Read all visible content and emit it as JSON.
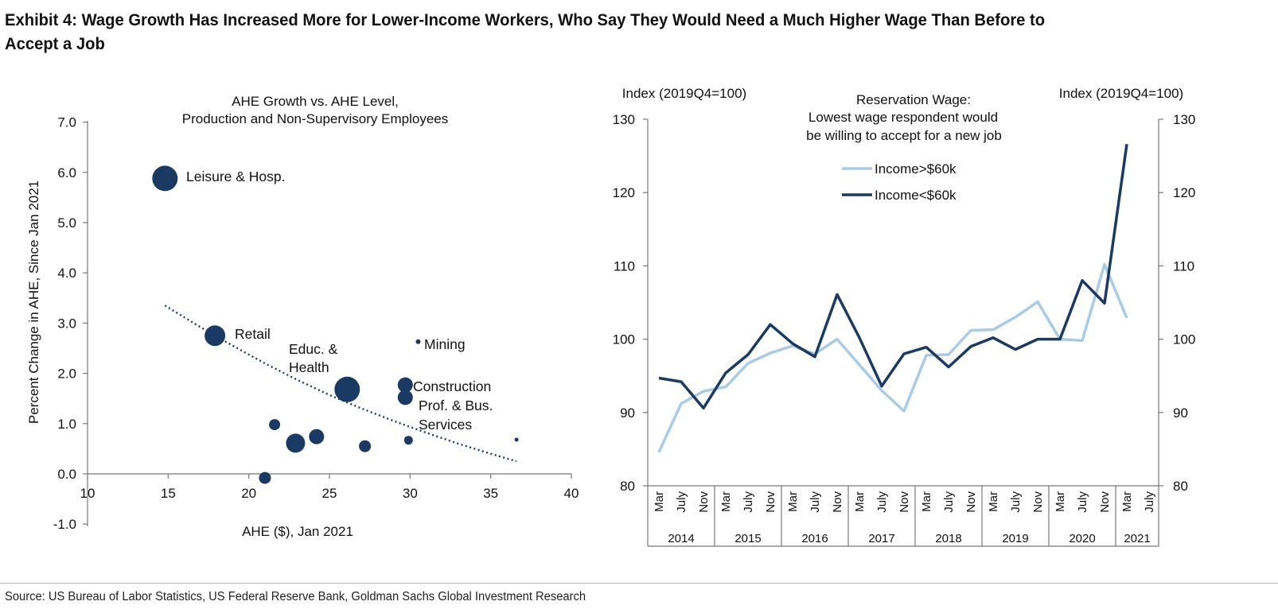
{
  "title_lines": [
    "Exhibit 4: Wage Growth Has Increased More for Lower-Income Workers, Who Say They Would Need a Much Higher Wage Than Before to",
    "Accept a Job"
  ],
  "source": "Source: US Bureau of Labor Statistics, US Federal Reserve Bank, Goldman Sachs Global Investment Research",
  "colors": {
    "navy": "#1b3a63",
    "light_blue": "#a9cbe6",
    "axis": "#777777"
  },
  "chart_data": [
    {
      "type": "scatter",
      "title_lines": [
        "AHE Growth vs. AHE Level,",
        "Production and Non-Supervisory Employees"
      ],
      "xlabel": "AHE ($), Jan 2021",
      "ylabel": "Percent  Change in AHE, Since Jan 2021",
      "xlim": [
        10,
        40
      ],
      "ylim": [
        -1.0,
        7.0
      ],
      "xticks": [
        10,
        15,
        20,
        25,
        30,
        35,
        40
      ],
      "xtick_labels": [
        "10",
        "15",
        "20",
        "25",
        "30",
        "35",
        "40"
      ],
      "yticks": [
        -1.0,
        0.0,
        1.0,
        2.0,
        3.0,
        4.0,
        5.0,
        6.0,
        7.0
      ],
      "ytick_labels": [
        "-1.0",
        "0.0",
        "1.0",
        "2.0",
        "3.0",
        "4.0",
        "5.0",
        "6.0",
        "7.0"
      ],
      "points": [
        {
          "x": 14.8,
          "y": 5.88,
          "size": 3.2,
          "label": "Leisure & Hosp."
        },
        {
          "x": 17.9,
          "y": 2.75,
          "size": 2.6,
          "label": "Retail"
        },
        {
          "x": 26.1,
          "y": 1.68,
          "size": 3.2,
          "label_lines": [
            "Educ. &",
            "Health"
          ]
        },
        {
          "x": 30.5,
          "y": 2.63,
          "size": 0.6,
          "label": "Mining"
        },
        {
          "x": 29.7,
          "y": 1.77,
          "size": 1.9,
          "label": "Construction"
        },
        {
          "x": 29.7,
          "y": 1.52,
          "size": 1.9,
          "label_lines": [
            "Prof. & Bus.",
            "Services"
          ]
        },
        {
          "x": 21.6,
          "y": 0.98,
          "size": 1.4
        },
        {
          "x": 22.9,
          "y": 0.61,
          "size": 2.4
        },
        {
          "x": 24.2,
          "y": 0.74,
          "size": 1.9
        },
        {
          "x": 27.2,
          "y": 0.55,
          "size": 1.5
        },
        {
          "x": 29.9,
          "y": 0.67,
          "size": 1.1
        },
        {
          "x": 21.0,
          "y": -0.08,
          "size": 1.5
        },
        {
          "x": 36.6,
          "y": 0.68,
          "size": 0.5
        }
      ],
      "trendline": {
        "style": "dotted",
        "x": [
          14.8,
          17,
          19,
          21,
          23,
          25,
          27,
          29,
          31,
          33,
          35,
          36.6
        ],
        "y": [
          3.35,
          2.92,
          2.55,
          2.2,
          1.87,
          1.57,
          1.3,
          1.05,
          0.82,
          0.6,
          0.4,
          0.25
        ]
      }
    },
    {
      "type": "line",
      "title_lines": [
        "Reservation Wage:",
        "Lowest wage respondent would",
        "be willing to accept for a new job"
      ],
      "ylabel_left": "Index (2019Q4=100)",
      "ylabel_right": "Index (2019Q4=100)",
      "ylim": [
        80,
        130
      ],
      "yticks": [
        80,
        90,
        100,
        110,
        120,
        130
      ],
      "ytick_labels": [
        "80",
        "90",
        "100",
        "110",
        "120",
        "130"
      ],
      "legend": "top-center",
      "x_month_labels": [
        "Mar",
        "July",
        "Nov",
        "Mar",
        "July",
        "Nov",
        "Mar",
        "July",
        "Nov",
        "Mar",
        "July",
        "Nov",
        "Mar",
        "July",
        "Nov",
        "Mar",
        "July",
        "Nov",
        "Mar",
        "July",
        "Nov",
        "Mar",
        "July"
      ],
      "x_year_labels": [
        "2014",
        "2015",
        "2016",
        "2017",
        "2018",
        "2019",
        "2020",
        "2021"
      ],
      "series": [
        {
          "name": "Income>$60k",
          "color": "#a9cbe6",
          "values": [
            84.6,
            91.2,
            92.9,
            93.5,
            96.7,
            98.1,
            99.1,
            98.0,
            100.0,
            96.5,
            93.0,
            90.2,
            97.8,
            97.9,
            101.2,
            101.3,
            103.0,
            105.1,
            100.0,
            99.8,
            110.2,
            102.9
          ]
        },
        {
          "name": "Income<$60k",
          "color": "#1b3a63",
          "values": [
            94.7,
            94.2,
            90.6,
            95.4,
            97.9,
            102.0,
            99.4,
            97.6,
            106.1,
            100.2,
            93.6,
            98.0,
            98.9,
            96.2,
            99.0,
            100.2,
            98.6,
            100.0,
            100.0,
            108.0,
            104.9,
            126.6
          ]
        }
      ]
    }
  ]
}
